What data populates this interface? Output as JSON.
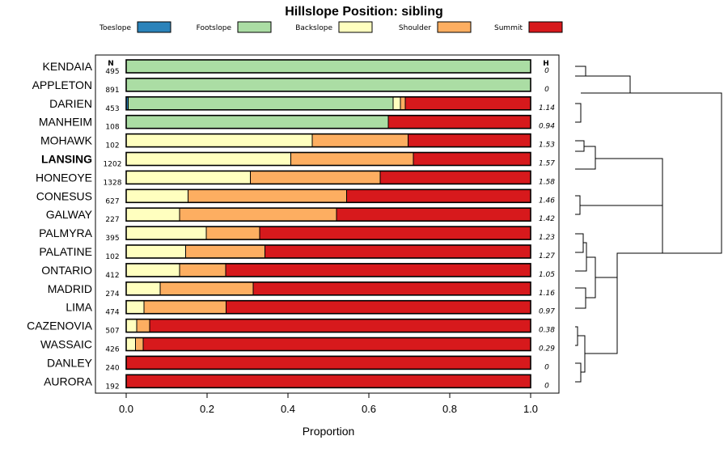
{
  "chart_data": {
    "type": "bar",
    "orientation": "horizontal-stacked",
    "title": "Hillslope Position: sibling",
    "xlabel": "Proportion",
    "ylabel": "",
    "xlim": [
      0,
      1
    ],
    "xticks": [
      "0.0",
      "0.2",
      "0.4",
      "0.6",
      "0.8",
      "1.0"
    ],
    "n_header": "N",
    "h_header": "H",
    "highlight": "LANSING",
    "series": [
      {
        "name": "Toeslope",
        "color": "#2b83ba"
      },
      {
        "name": "Footslope",
        "color": "#abdda4"
      },
      {
        "name": "Backslope",
        "color": "#ffffbf"
      },
      {
        "name": "Shoulder",
        "color": "#fdae61"
      },
      {
        "name": "Summit",
        "color": "#d7191c"
      }
    ],
    "rows": [
      {
        "name": "KENDAIA",
        "n": "495",
        "h": "0",
        "values": [
          0,
          1.0,
          0,
          0,
          0
        ]
      },
      {
        "name": "APPLETON",
        "n": "891",
        "h": "0",
        "values": [
          0,
          1.0,
          0,
          0,
          0
        ]
      },
      {
        "name": "DARIEN",
        "n": "453",
        "h": "1.14",
        "values": [
          0.005,
          0.655,
          0.018,
          0.012,
          0.31
        ]
      },
      {
        "name": "MANHEIM",
        "n": "108",
        "h": "0.94",
        "values": [
          0,
          0.648,
          0,
          0,
          0.352
        ]
      },
      {
        "name": "MOHAWK",
        "n": "102",
        "h": "1.53",
        "values": [
          0,
          0,
          0.46,
          0.237,
          0.303
        ]
      },
      {
        "name": "LANSING",
        "n": "1202",
        "h": "1.57",
        "values": [
          0,
          0,
          0.407,
          0.303,
          0.29
        ]
      },
      {
        "name": "HONEOYE",
        "n": "1328",
        "h": "1.58",
        "values": [
          0,
          0,
          0.307,
          0.321,
          0.372
        ]
      },
      {
        "name": "CONESUS",
        "n": "627",
        "h": "1.46",
        "values": [
          0,
          0,
          0.153,
          0.392,
          0.455
        ]
      },
      {
        "name": "GALWAY",
        "n": "227",
        "h": "1.42",
        "values": [
          0,
          0,
          0.132,
          0.388,
          0.48
        ]
      },
      {
        "name": "PALMYRA",
        "n": "395",
        "h": "1.23",
        "values": [
          0,
          0,
          0.198,
          0.132,
          0.67
        ]
      },
      {
        "name": "PALATINE",
        "n": "102",
        "h": "1.27",
        "values": [
          0,
          0,
          0.147,
          0.196,
          0.657
        ]
      },
      {
        "name": "ONTARIO",
        "n": "412",
        "h": "1.05",
        "values": [
          0,
          0,
          0.132,
          0.114,
          0.754
        ]
      },
      {
        "name": "MADRID",
        "n": "274",
        "h": "1.16",
        "values": [
          0,
          0,
          0.084,
          0.23,
          0.686
        ]
      },
      {
        "name": "LIMA",
        "n": "474",
        "h": "0.97",
        "values": [
          0,
          0,
          0.044,
          0.203,
          0.753
        ]
      },
      {
        "name": "CAZENOVIA",
        "n": "507",
        "h": "0.38",
        "values": [
          0,
          0,
          0.026,
          0.032,
          0.942
        ]
      },
      {
        "name": "WASSAIC",
        "n": "426",
        "h": "0.29",
        "values": [
          0,
          0,
          0.023,
          0.019,
          0.958
        ]
      },
      {
        "name": "DANLEY",
        "n": "240",
        "h": "0",
        "values": [
          0,
          0,
          0,
          0,
          1.0
        ]
      },
      {
        "name": "AURORA",
        "n": "192",
        "h": "0",
        "values": [
          0,
          0,
          0,
          0,
          1.0
        ]
      }
    ]
  }
}
